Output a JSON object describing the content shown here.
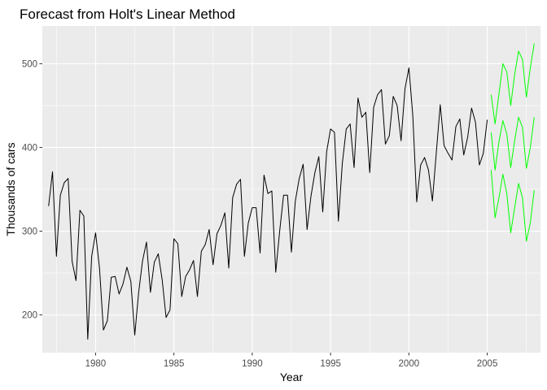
{
  "chart_data": {
    "type": "line",
    "title": "Forecast from Holt's Linear Method",
    "xlabel": "Year",
    "ylabel": "Thousands of cars",
    "xlim": [
      1976.6,
      2008.4
    ],
    "ylim": [
      155,
      545
    ],
    "x_ticks": [
      1980,
      1985,
      1990,
      1995,
      2000,
      2005
    ],
    "y_ticks": [
      200,
      300,
      400,
      500
    ],
    "grid": true,
    "legend": "none",
    "colors": {
      "panel_background": "#ebebeb",
      "grid_major": "#ffffff",
      "actual_line": "#000000",
      "forecast_line": "#00ff00"
    },
    "series": [
      {
        "x_start": 1977.0,
        "x_step": 0.25,
        "line_color": "#000000",
        "values": [
          330,
          371,
          270,
          343,
          358,
          363,
          264,
          241,
          325,
          318,
          171,
          270,
          298,
          256,
          182,
          193,
          245,
          246,
          225,
          237,
          257,
          240,
          176,
          227,
          265,
          287,
          227,
          263,
          273,
          242,
          197,
          206,
          291,
          285,
          222,
          246,
          254,
          265,
          222,
          276,
          284,
          302,
          260,
          297,
          307,
          322,
          256,
          340,
          356,
          362,
          270,
          310,
          328,
          328,
          274,
          367,
          345,
          348,
          251,
          300,
          343,
          343,
          275,
          336,
          363,
          380,
          302,
          342,
          370,
          389,
          323,
          395,
          422,
          418,
          312,
          381,
          422,
          428,
          376,
          459,
          436,
          442,
          370,
          448,
          463,
          469,
          404,
          414,
          461,
          450,
          408,
          470,
          495,
          438,
          335,
          379,
          388,
          373,
          336,
          394,
          451,
          402,
          393,
          385,
          425,
          434,
          391,
          412,
          447,
          430,
          379,
          393,
          433
        ]
      },
      {
        "x_start": 2005.25,
        "x_step": 0.25,
        "line_color": "#00ff00",
        "values": [
          463,
          428,
          464,
          500,
          490,
          450,
          487,
          515,
          505,
          460,
          495,
          524
        ]
      },
      {
        "x_start": 2005.25,
        "x_step": 0.25,
        "line_color": "#00ff00",
        "values": [
          418,
          373,
          407,
          432,
          416,
          376,
          408,
          436,
          424,
          375,
          400,
          436
        ]
      },
      {
        "x_start": 2005.25,
        "x_step": 0.25,
        "line_color": "#00ff00",
        "values": [
          373,
          316,
          340,
          368,
          345,
          298,
          328,
          357,
          340,
          288,
          310,
          349
        ]
      }
    ]
  }
}
